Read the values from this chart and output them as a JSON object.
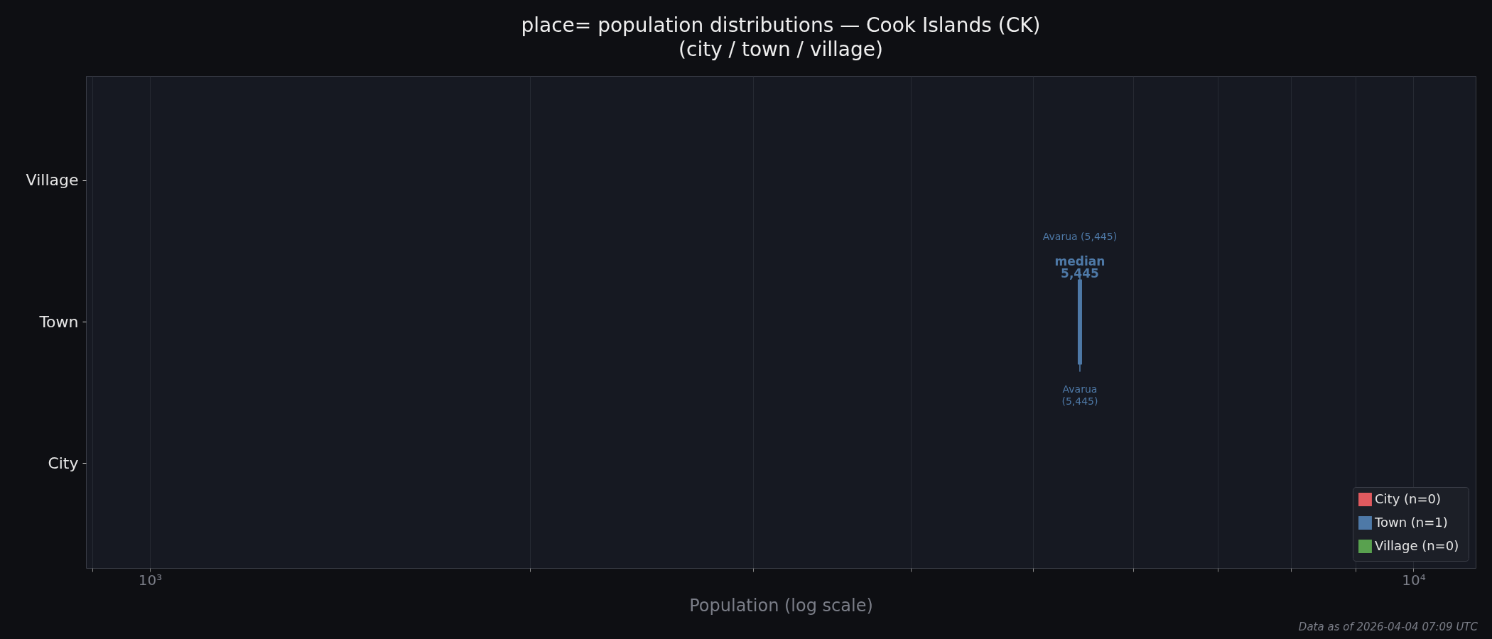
{
  "chart_data": {
    "type": "box",
    "title": "place= population distributions — Cook Islands (CK)",
    "subtitle": "(city / town / village)",
    "xlabel": "Population (log scale)",
    "orientation": "horizontal",
    "log": "x",
    "grid": "x",
    "legend": "bottom right",
    "categories": [
      "Village",
      "Town",
      "City"
    ],
    "series": [
      {
        "name": "City  (n=0)",
        "color": "#e05a5f",
        "boxes": [
          null,
          null,
          null
        ]
      },
      {
        "name": "Town  (n=1)",
        "color": "#4e79a7",
        "boxes": [
          null,
          {
            "low": 5445,
            "q1": 5445,
            "median": 5445,
            "q3": 5445,
            "high": 5445
          },
          null
        ]
      },
      {
        "name": "Village  (n=0)",
        "color": "#59a14f",
        "boxes": [
          null,
          null,
          null
        ]
      }
    ],
    "xlim": [
      890,
      11200
    ],
    "xticks": [
      {
        "value": 900,
        "label": null
      },
      {
        "value": 1000,
        "label": "10³"
      },
      {
        "value": 2000,
        "label": null
      },
      {
        "value": 3000,
        "label": null
      },
      {
        "value": 4000,
        "label": null
      },
      {
        "value": 5000,
        "label": null
      },
      {
        "value": 6000,
        "label": null
      },
      {
        "value": 7000,
        "label": null
      },
      {
        "value": 8000,
        "label": null
      },
      {
        "value": 9000,
        "label": null
      },
      {
        "value": 10000,
        "label": "10⁴"
      }
    ],
    "annotations": [
      "median\n5,445",
      "Avarua (5,445)",
      "Avarua\n(5,445)",
      "Data as of 2026-04-04 07:09 UTC"
    ]
  }
}
